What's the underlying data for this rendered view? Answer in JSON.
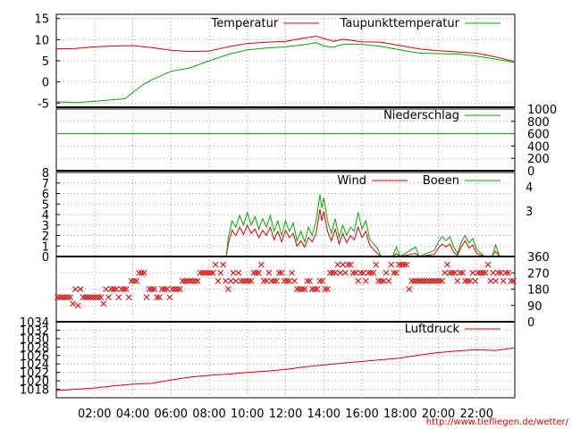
{
  "source_url": "http://www.tiefliegen.de/wetter/",
  "colors": {
    "red": "#dd0000",
    "green": "#00aa00",
    "grid": "#999999"
  },
  "chart_data": [
    {
      "type": "line",
      "legend": [
        "Temperatur",
        "Taupunkttemperatur"
      ],
      "ylim": [
        -6,
        16
      ],
      "yticks": [
        -5,
        0,
        5,
        10,
        15
      ],
      "x_start_hour": 0,
      "x_end_hour": 24,
      "series": [
        {
          "name": "Temperatur",
          "color": "red",
          "points": [
            [
              0,
              7.8
            ],
            [
              1,
              7.9
            ],
            [
              2,
              8.3
            ],
            [
              3,
              8.5
            ],
            [
              4,
              8.6
            ],
            [
              5,
              8.1
            ],
            [
              6,
              7.5
            ],
            [
              7,
              7.2
            ],
            [
              8,
              7.3
            ],
            [
              9,
              8.3
            ],
            [
              10,
              9.1
            ],
            [
              11,
              9.4
            ],
            [
              12,
              9.6
            ],
            [
              13,
              10.4
            ],
            [
              13.6,
              10.8
            ],
            [
              14,
              10.3
            ],
            [
              14.5,
              9.6
            ],
            [
              15,
              10.1
            ],
            [
              16,
              9.5
            ],
            [
              17,
              9.4
            ],
            [
              18,
              8.6
            ],
            [
              19,
              7.8
            ],
            [
              20,
              7.4
            ],
            [
              21,
              7.1
            ],
            [
              22,
              6.8
            ],
            [
              23,
              5.9
            ],
            [
              24,
              4.8
            ]
          ]
        },
        {
          "name": "Taupunkttemperatur",
          "color": "green",
          "points": [
            [
              0,
              -4.7
            ],
            [
              1,
              -4.9
            ],
            [
              2,
              -4.6
            ],
            [
              3,
              -4.2
            ],
            [
              3.6,
              -4.0
            ],
            [
              4,
              -2.5
            ],
            [
              4.5,
              -0.8
            ],
            [
              5,
              0.5
            ],
            [
              6,
              2.5
            ],
            [
              7,
              3.3
            ],
            [
              8,
              5.0
            ],
            [
              9,
              6.5
            ],
            [
              10,
              7.6
            ],
            [
              11,
              8.0
            ],
            [
              12,
              8.3
            ],
            [
              13,
              8.8
            ],
            [
              13.6,
              9.3
            ],
            [
              14,
              8.5
            ],
            [
              14.5,
              8.2
            ],
            [
              15,
              8.9
            ],
            [
              16,
              8.9
            ],
            [
              17,
              8.4
            ],
            [
              18,
              7.6
            ],
            [
              19,
              6.8
            ],
            [
              20,
              6.7
            ],
            [
              21,
              6.6
            ],
            [
              22,
              6.1
            ],
            [
              23,
              5.4
            ],
            [
              24,
              4.6
            ]
          ]
        }
      ]
    },
    {
      "type": "line",
      "legend": [
        "Niederschlag"
      ],
      "ylim": [
        0,
        1000
      ],
      "yticks": [
        0,
        200,
        400,
        600,
        800,
        1000
      ],
      "series": [
        {
          "name": "Niederschlag",
          "color": "green",
          "points": [
            [
              0,
              600
            ],
            [
              24,
              600
            ]
          ]
        }
      ]
    },
    {
      "type": "line",
      "legend": [
        "Wind",
        "Boeen"
      ],
      "ylim": [
        0,
        8
      ],
      "yticks": [
        0,
        1,
        2,
        3,
        4,
        5,
        6,
        7,
        8
      ],
      "right_ticks": [
        "3",
        "4"
      ],
      "series": [
        {
          "name": "Wind",
          "color": "red",
          "points": [
            [
              0,
              0
            ],
            [
              8.9,
              0
            ],
            [
              9.0,
              1.2
            ],
            [
              9.2,
              2.5
            ],
            [
              9.4,
              2.0
            ],
            [
              9.6,
              2.8
            ],
            [
              9.8,
              2.1
            ],
            [
              10.0,
              3.0
            ],
            [
              10.2,
              2.2
            ],
            [
              10.4,
              2.6
            ],
            [
              10.6,
              1.8
            ],
            [
              10.8,
              2.5
            ],
            [
              11.0,
              2.0
            ],
            [
              11.2,
              2.8
            ],
            [
              11.4,
              1.6
            ],
            [
              11.6,
              2.4
            ],
            [
              11.8,
              1.4
            ],
            [
              12.0,
              2.5
            ],
            [
              12.2,
              1.8
            ],
            [
              12.4,
              2.2
            ],
            [
              12.6,
              1.0
            ],
            [
              12.8,
              1.5
            ],
            [
              13.0,
              0.9
            ],
            [
              13.2,
              1.8
            ],
            [
              13.4,
              1.4
            ],
            [
              13.6,
              2.2
            ],
            [
              13.8,
              4.5
            ],
            [
              13.9,
              3.4
            ],
            [
              14.0,
              4.3
            ],
            [
              14.2,
              2.4
            ],
            [
              14.4,
              1.5
            ],
            [
              14.6,
              2.6
            ],
            [
              14.8,
              1.2
            ],
            [
              15.0,
              2.2
            ],
            [
              15.2,
              1.3
            ],
            [
              15.4,
              2.0
            ],
            [
              15.6,
              1.6
            ],
            [
              15.8,
              2.8
            ],
            [
              16.0,
              1.8
            ],
            [
              16.2,
              2.4
            ],
            [
              16.4,
              1.1
            ],
            [
              16.6,
              0.7
            ],
            [
              16.8,
              0.3
            ],
            [
              17.0,
              0
            ],
            [
              17.6,
              0
            ],
            [
              17.8,
              0.3
            ],
            [
              18.0,
              0
            ],
            [
              18.8,
              0.3
            ],
            [
              19.0,
              0
            ],
            [
              19.8,
              0.2
            ],
            [
              20.0,
              0.8
            ],
            [
              20.2,
              1.2
            ],
            [
              20.4,
              0.9
            ],
            [
              20.6,
              1.2
            ],
            [
              20.8,
              0.4
            ],
            [
              21.0,
              0.1
            ],
            [
              21.2,
              0.9
            ],
            [
              21.4,
              1.5
            ],
            [
              21.6,
              0.8
            ],
            [
              21.8,
              1.1
            ],
            [
              22.0,
              0.3
            ],
            [
              22.4,
              0
            ],
            [
              22.8,
              0
            ],
            [
              23.0,
              0.5
            ],
            [
              23.2,
              0
            ],
            [
              24,
              0
            ]
          ]
        },
        {
          "name": "Boeen",
          "color": "green",
          "points": [
            [
              0,
              0
            ],
            [
              8.9,
              0
            ],
            [
              9.0,
              1.8
            ],
            [
              9.2,
              3.4
            ],
            [
              9.4,
              2.8
            ],
            [
              9.6,
              3.9
            ],
            [
              9.8,
              3.0
            ],
            [
              10.0,
              4.2
            ],
            [
              10.2,
              3.0
            ],
            [
              10.4,
              3.8
            ],
            [
              10.6,
              2.6
            ],
            [
              10.8,
              3.6
            ],
            [
              11.0,
              2.8
            ],
            [
              11.2,
              3.9
            ],
            [
              11.4,
              2.4
            ],
            [
              11.6,
              3.4
            ],
            [
              11.8,
              2.0
            ],
            [
              12.0,
              3.4
            ],
            [
              12.2,
              2.4
            ],
            [
              12.4,
              3.2
            ],
            [
              12.6,
              1.5
            ],
            [
              12.8,
              2.4
            ],
            [
              13.0,
              1.4
            ],
            [
              13.2,
              2.8
            ],
            [
              13.4,
              2.0
            ],
            [
              13.6,
              3.4
            ],
            [
              13.8,
              5.9
            ],
            [
              13.9,
              4.6
            ],
            [
              14.0,
              5.6
            ],
            [
              14.2,
              3.4
            ],
            [
              14.4,
              2.2
            ],
            [
              14.6,
              3.6
            ],
            [
              14.8,
              1.8
            ],
            [
              15.0,
              3.0
            ],
            [
              15.2,
              2.0
            ],
            [
              15.4,
              2.8
            ],
            [
              15.6,
              2.4
            ],
            [
              15.8,
              4.2
            ],
            [
              16.0,
              2.6
            ],
            [
              16.2,
              3.4
            ],
            [
              16.4,
              1.7
            ],
            [
              16.6,
              1.2
            ],
            [
              16.8,
              0.8
            ],
            [
              17.0,
              0
            ],
            [
              17.6,
              0
            ],
            [
              17.8,
              0.9
            ],
            [
              18.0,
              0
            ],
            [
              18.8,
              0.9
            ],
            [
              19.0,
              0
            ],
            [
              19.8,
              0.6
            ],
            [
              20.0,
              1.4
            ],
            [
              20.2,
              1.9
            ],
            [
              20.4,
              1.5
            ],
            [
              20.6,
              1.9
            ],
            [
              20.8,
              0.9
            ],
            [
              21.0,
              0.3
            ],
            [
              21.2,
              1.4
            ],
            [
              21.4,
              2.0
            ],
            [
              21.6,
              1.3
            ],
            [
              21.8,
              1.7
            ],
            [
              22.0,
              0.7
            ],
            [
              22.4,
              0
            ],
            [
              22.8,
              0
            ],
            [
              23.0,
              1.1
            ],
            [
              23.2,
              0
            ],
            [
              24,
              0
            ]
          ]
        }
      ]
    },
    {
      "type": "scatter",
      "marker": "x",
      "ylim": [
        0,
        360
      ],
      "yticks": [
        0,
        90,
        180,
        270,
        360
      ],
      "series": [
        {
          "name": "",
          "color": "red",
          "values_deg": [
            135,
            135,
            135,
            135,
            135,
            135,
            100,
            180,
            90,
            180,
            135,
            135,
            135,
            135,
            135,
            135,
            135,
            135,
            100,
            180,
            135,
            180,
            180,
            180,
            135,
            180,
            180,
            180,
            135,
            225,
            225,
            225,
            270,
            270,
            270,
            135,
            180,
            180,
            180,
            135,
            135,
            180,
            180,
            180,
            135,
            180,
            180,
            180,
            180,
            225,
            225,
            225,
            225,
            225,
            225,
            225,
            270,
            270,
            270,
            270,
            270,
            270,
            315,
            225,
            270,
            315,
            225,
            180,
            225,
            270,
            225,
            270,
            225,
            225,
            225,
            225,
            225,
            270,
            270,
            270,
            315,
            225,
            225,
            270,
            225,
            225,
            225,
            270,
            270,
            225,
            225,
            225,
            270,
            225,
            180,
            180,
            180,
            180,
            225,
            225,
            180,
            180,
            180,
            225,
            225,
            180,
            180,
            270,
            270,
            270,
            315,
            270,
            315,
            270,
            315,
            315,
            270,
            270,
            225,
            270,
            270,
            225,
            270,
            270,
            270,
            315,
            225,
            225,
            225,
            270,
            225,
            315,
            270,
            270,
            315,
            315,
            315,
            315,
            180,
            225,
            225,
            225,
            225,
            225,
            225,
            225,
            225,
            225,
            225,
            225,
            225,
            225,
            270,
            315,
            270,
            270,
            270,
            225,
            270,
            270,
            225,
            225,
            225,
            270,
            225,
            270,
            270,
            270,
            270,
            315,
            225,
            270,
            225,
            270,
            270,
            225,
            270,
            270,
            225,
            225
          ]
        }
      ]
    },
    {
      "type": "line",
      "legend": [
        "Luftdruck"
      ],
      "ylim": [
        1016,
        1034
      ],
      "yticks": [
        1018,
        1020,
        1022,
        1024,
        1026,
        1028,
        1030,
        1032,
        1034
      ],
      "xticks": [
        "02:00",
        "04:00",
        "06:00",
        "08:00",
        "10:00",
        "12:00",
        "14:00",
        "16:00",
        "18:00",
        "20:00",
        "22:00"
      ],
      "series": [
        {
          "name": "Luftdruck",
          "color": "red",
          "points": [
            [
              0,
              1017.7
            ],
            [
              1,
              1018.0
            ],
            [
              2,
              1018.3
            ],
            [
              3,
              1018.8
            ],
            [
              4,
              1019.2
            ],
            [
              5,
              1019.4
            ],
            [
              6,
              1020.2
            ],
            [
              7,
              1020.9
            ],
            [
              8,
              1021.3
            ],
            [
              9,
              1021.6
            ],
            [
              10,
              1022.0
            ],
            [
              11,
              1022.3
            ],
            [
              12,
              1022.7
            ],
            [
              13,
              1023.3
            ],
            [
              14,
              1023.8
            ],
            [
              15,
              1024.2
            ],
            [
              16,
              1024.6
            ],
            [
              17,
              1025.0
            ],
            [
              18,
              1025.4
            ],
            [
              19,
              1026.1
            ],
            [
              20,
              1026.7
            ],
            [
              21,
              1027.1
            ],
            [
              22,
              1027.4
            ],
            [
              23,
              1027.2
            ],
            [
              24,
              1027.8
            ]
          ]
        }
      ]
    }
  ]
}
